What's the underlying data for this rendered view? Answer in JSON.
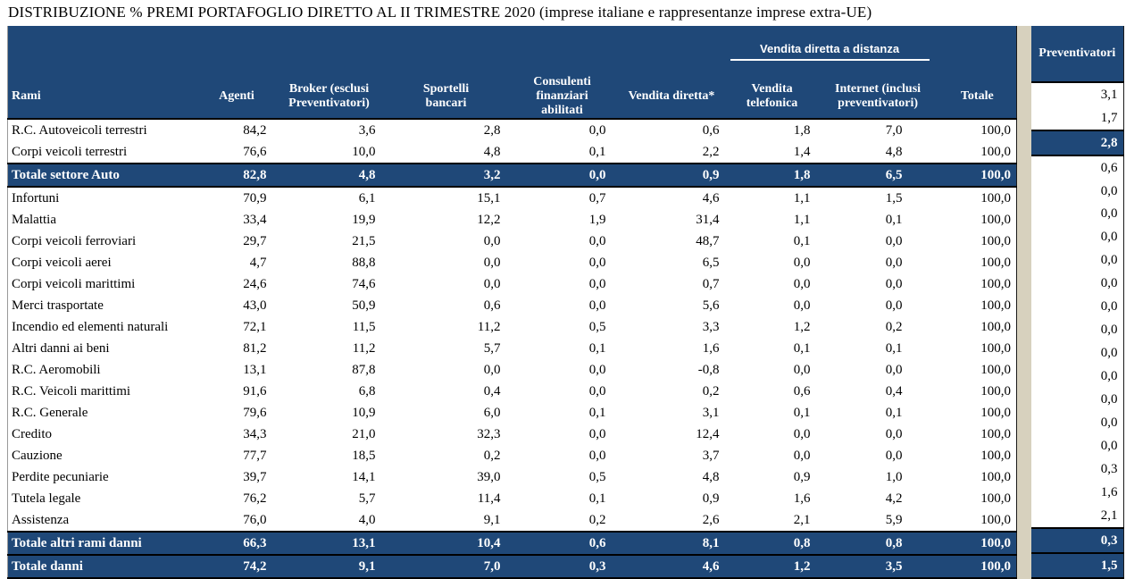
{
  "title": "DISTRIBUZIONE % PREMI PORTAFOGLIO DIRETTO AL II TRIMESTRE 2020 (imprese italiane e rappresentanze imprese extra-UE)",
  "colors": {
    "header_blue": "#1F4878",
    "total_row_blue": "#1F4878",
    "separator_tan": "#D7D1BE",
    "header_text": "#FFFFFF",
    "body_text": "#000000",
    "border": "#000000"
  },
  "chart_data": {
    "type": "table",
    "title": "DISTRIBUZIONE % PREMI PORTAFOGLIO DIRETTO AL II TRIMESTRE 2020 (imprese italiane e rappresentanze imprese extra-UE)",
    "group_header": "Vendita diretta a distanza",
    "group_header_spans": [
      "Vendita telefonica",
      "Internet (inclusi preventivatori)"
    ],
    "columns": [
      {
        "id": "rami",
        "label": "Rami"
      },
      {
        "id": "agenti",
        "label": "Agenti"
      },
      {
        "id": "broker",
        "label": "Broker (esclusi\nPreventivatori)"
      },
      {
        "id": "sportelli_bancari",
        "label": "Sportelli\nbancari"
      },
      {
        "id": "consulenti_finanziari",
        "label": "Consulenti\nfinanziari\nabilitati"
      },
      {
        "id": "vendita_diretta",
        "label": "Vendita diretta*"
      },
      {
        "id": "vendita_telefonica",
        "label": "Vendita\ntelefonica"
      },
      {
        "id": "internet",
        "label": "Internet (inclusi\npreventivatori)"
      },
      {
        "id": "totale",
        "label": "Totale"
      },
      {
        "id": "preventivatori",
        "label": "Preventivatori"
      }
    ],
    "rows": [
      {
        "label": "R.C. Autoveicoli terrestri",
        "type": "data",
        "values": [
          "84,2",
          "3,6",
          "2,8",
          "0,0",
          "0,6",
          "1,8",
          "7,0",
          "100,0",
          "3,1"
        ]
      },
      {
        "label": "Corpi veicoli terrestri",
        "type": "data",
        "values": [
          "76,6",
          "10,0",
          "4,8",
          "0,1",
          "2,2",
          "1,4",
          "4,8",
          "100,0",
          "1,7"
        ]
      },
      {
        "label": "Totale settore Auto",
        "type": "total",
        "values": [
          "82,8",
          "4,8",
          "3,2",
          "0,0",
          "0,9",
          "1,8",
          "6,5",
          "100,0",
          "2,8"
        ]
      },
      {
        "label": "Infortuni",
        "type": "data",
        "values": [
          "70,9",
          "6,1",
          "15,1",
          "0,7",
          "4,6",
          "1,1",
          "1,5",
          "100,0",
          "0,6"
        ]
      },
      {
        "label": "Malattia",
        "type": "data",
        "values": [
          "33,4",
          "19,9",
          "12,2",
          "1,9",
          "31,4",
          "1,1",
          "0,1",
          "100,0",
          "0,0"
        ]
      },
      {
        "label": "Corpi veicoli ferroviari",
        "type": "data",
        "values": [
          "29,7",
          "21,5",
          "0,0",
          "0,0",
          "48,7",
          "0,1",
          "0,0",
          "100,0",
          "0,0"
        ]
      },
      {
        "label": "Corpi veicoli aerei",
        "type": "data",
        "values": [
          "4,7",
          "88,8",
          "0,0",
          "0,0",
          "6,5",
          "0,0",
          "0,0",
          "100,0",
          "0,0"
        ]
      },
      {
        "label": "Corpi veicoli marittimi",
        "type": "data",
        "values": [
          "24,6",
          "74,6",
          "0,0",
          "0,0",
          "0,7",
          "0,0",
          "0,0",
          "100,0",
          "0,0"
        ]
      },
      {
        "label": "Merci trasportate",
        "type": "data",
        "values": [
          "43,0",
          "50,9",
          "0,6",
          "0,0",
          "5,6",
          "0,0",
          "0,0",
          "100,0",
          "0,0"
        ]
      },
      {
        "label": "Incendio ed elementi naturali",
        "type": "data",
        "values": [
          "72,1",
          "11,5",
          "11,2",
          "0,5",
          "3,3",
          "1,2",
          "0,2",
          "100,0",
          "0,0"
        ]
      },
      {
        "label": "Altri danni ai beni",
        "type": "data",
        "values": [
          "81,2",
          "11,2",
          "5,7",
          "0,1",
          "1,6",
          "0,1",
          "0,1",
          "100,0",
          "0,0"
        ]
      },
      {
        "label": "R.C. Aeromobili",
        "type": "data",
        "values": [
          "13,1",
          "87,8",
          "0,0",
          "0,0",
          "-0,8",
          "0,0",
          "0,0",
          "100,0",
          "0,0"
        ]
      },
      {
        "label": "R.C. Veicoli marittimi",
        "type": "data",
        "values": [
          "91,6",
          "6,8",
          "0,4",
          "0,0",
          "0,2",
          "0,6",
          "0,4",
          "100,0",
          "0,0"
        ]
      },
      {
        "label": "R.C. Generale",
        "type": "data",
        "values": [
          "79,6",
          "10,9",
          "6,0",
          "0,1",
          "3,1",
          "0,1",
          "0,1",
          "100,0",
          "0,0"
        ]
      },
      {
        "label": "Credito",
        "type": "data",
        "values": [
          "34,3",
          "21,0",
          "32,3",
          "0,0",
          "12,4",
          "0,0",
          "0,0",
          "100,0",
          "0,0"
        ]
      },
      {
        "label": "Cauzione",
        "type": "data",
        "values": [
          "77,7",
          "18,5",
          "0,2",
          "0,0",
          "3,7",
          "0,0",
          "0,0",
          "100,0",
          "0,0"
        ]
      },
      {
        "label": "Perdite pecuniarie",
        "type": "data",
        "values": [
          "39,7",
          "14,1",
          "39,0",
          "0,5",
          "4,8",
          "0,9",
          "1,0",
          "100,0",
          "0,3"
        ]
      },
      {
        "label": "Tutela legale",
        "type": "data",
        "values": [
          "76,2",
          "5,7",
          "11,4",
          "0,1",
          "0,9",
          "1,6",
          "4,2",
          "100,0",
          "1,6"
        ]
      },
      {
        "label": "Assistenza",
        "type": "data",
        "values": [
          "76,0",
          "4,0",
          "9,1",
          "0,2",
          "2,6",
          "2,1",
          "5,9",
          "100,0",
          "2,1"
        ]
      },
      {
        "label": "Totale altri rami danni",
        "type": "total",
        "values": [
          "66,3",
          "13,1",
          "10,4",
          "0,6",
          "8,1",
          "0,8",
          "0,8",
          "100,0",
          "0,3"
        ]
      },
      {
        "label": "Totale danni",
        "type": "total",
        "values": [
          "74,2",
          "9,1",
          "7,0",
          "0,3",
          "4,6",
          "1,2",
          "3,5",
          "100,0",
          "1,5"
        ]
      }
    ]
  }
}
